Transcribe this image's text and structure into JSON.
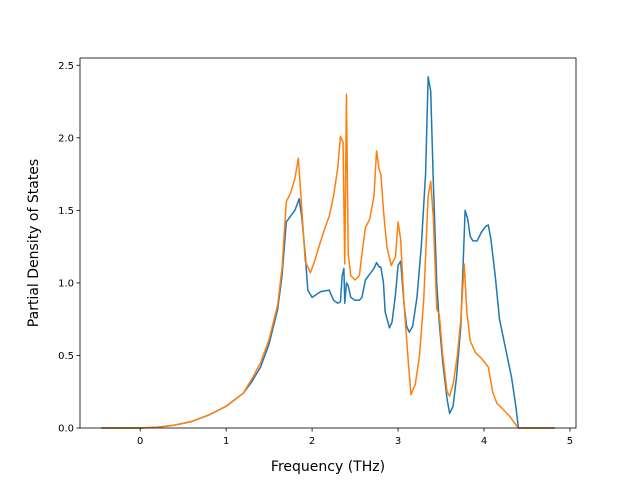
{
  "chart_data": {
    "type": "line",
    "xlabel": "Frequency (THz)",
    "ylabel": "Partial Density of States",
    "xlim": [
      -0.7,
      5.07
    ],
    "ylim": [
      0,
      2.55
    ],
    "xticks": [
      0,
      1,
      2,
      3,
      4,
      5
    ],
    "yticks": [
      0.0,
      0.5,
      1.0,
      1.5,
      2.0,
      2.5
    ],
    "xtick_labels": [
      "0",
      "1",
      "2",
      "3",
      "4",
      "5"
    ],
    "ytick_labels": [
      "0.0",
      "0.5",
      "1.0",
      "1.5",
      "2.0",
      "2.5"
    ],
    "grid": false,
    "series": [
      {
        "color": "#1f77b4",
        "points": [
          [
            -0.45,
            0.0
          ],
          [
            0.0,
            0.0
          ],
          [
            0.2,
            0.005
          ],
          [
            0.4,
            0.02
          ],
          [
            0.6,
            0.045
          ],
          [
            0.8,
            0.09
          ],
          [
            1.0,
            0.15
          ],
          [
            1.2,
            0.24
          ],
          [
            1.3,
            0.32
          ],
          [
            1.4,
            0.42
          ],
          [
            1.5,
            0.58
          ],
          [
            1.6,
            0.82
          ],
          [
            1.65,
            1.05
          ],
          [
            1.7,
            1.42
          ],
          [
            1.75,
            1.46
          ],
          [
            1.8,
            1.5
          ],
          [
            1.85,
            1.58
          ],
          [
            1.88,
            1.45
          ],
          [
            1.92,
            1.2
          ],
          [
            1.95,
            0.95
          ],
          [
            2.0,
            0.9
          ],
          [
            2.05,
            0.92
          ],
          [
            2.1,
            0.94
          ],
          [
            2.2,
            0.95
          ],
          [
            2.25,
            0.88
          ],
          [
            2.3,
            0.86
          ],
          [
            2.33,
            0.87
          ],
          [
            2.35,
            1.05
          ],
          [
            2.37,
            1.1
          ],
          [
            2.38,
            0.86
          ],
          [
            2.4,
            1.0
          ],
          [
            2.42,
            0.98
          ],
          [
            2.45,
            0.9
          ],
          [
            2.5,
            0.88
          ],
          [
            2.55,
            0.88
          ],
          [
            2.58,
            0.9
          ],
          [
            2.62,
            1.02
          ],
          [
            2.67,
            1.06
          ],
          [
            2.72,
            1.1
          ],
          [
            2.75,
            1.14
          ],
          [
            2.78,
            1.11
          ],
          [
            2.8,
            1.11
          ],
          [
            2.83,
            1.0
          ],
          [
            2.85,
            0.8
          ],
          [
            2.9,
            0.69
          ],
          [
            2.93,
            0.73
          ],
          [
            2.97,
            0.92
          ],
          [
            3.0,
            1.12
          ],
          [
            3.03,
            1.15
          ],
          [
            3.07,
            0.85
          ],
          [
            3.1,
            0.7
          ],
          [
            3.13,
            0.66
          ],
          [
            3.17,
            0.7
          ],
          [
            3.22,
            0.9
          ],
          [
            3.27,
            1.25
          ],
          [
            3.32,
            1.75
          ],
          [
            3.35,
            2.42
          ],
          [
            3.38,
            2.32
          ],
          [
            3.41,
            1.7
          ],
          [
            3.45,
            1.0
          ],
          [
            3.48,
            0.72
          ],
          [
            3.52,
            0.45
          ],
          [
            3.57,
            0.2
          ],
          [
            3.6,
            0.1
          ],
          [
            3.64,
            0.15
          ],
          [
            3.68,
            0.35
          ],
          [
            3.73,
            0.7
          ],
          [
            3.78,
            1.5
          ],
          [
            3.81,
            1.44
          ],
          [
            3.84,
            1.32
          ],
          [
            3.87,
            1.29
          ],
          [
            3.92,
            1.29
          ],
          [
            3.97,
            1.35
          ],
          [
            4.02,
            1.39
          ],
          [
            4.05,
            1.4
          ],
          [
            4.08,
            1.3
          ],
          [
            4.13,
            1.05
          ],
          [
            4.18,
            0.75
          ],
          [
            4.25,
            0.55
          ],
          [
            4.32,
            0.35
          ],
          [
            4.37,
            0.15
          ],
          [
            4.4,
            0.0
          ],
          [
            4.82,
            0.0
          ]
        ]
      },
      {
        "color": "#ff7f0e",
        "points": [
          [
            -0.45,
            0.0
          ],
          [
            0.0,
            0.0
          ],
          [
            0.2,
            0.005
          ],
          [
            0.4,
            0.02
          ],
          [
            0.6,
            0.045
          ],
          [
            0.8,
            0.09
          ],
          [
            1.0,
            0.15
          ],
          [
            1.2,
            0.24
          ],
          [
            1.3,
            0.34
          ],
          [
            1.4,
            0.45
          ],
          [
            1.5,
            0.61
          ],
          [
            1.6,
            0.85
          ],
          [
            1.65,
            1.1
          ],
          [
            1.7,
            1.56
          ],
          [
            1.75,
            1.62
          ],
          [
            1.8,
            1.72
          ],
          [
            1.84,
            1.86
          ],
          [
            1.87,
            1.6
          ],
          [
            1.92,
            1.15
          ],
          [
            1.98,
            1.07
          ],
          [
            2.03,
            1.15
          ],
          [
            2.08,
            1.25
          ],
          [
            2.15,
            1.38
          ],
          [
            2.2,
            1.46
          ],
          [
            2.25,
            1.6
          ],
          [
            2.3,
            1.8
          ],
          [
            2.33,
            2.01
          ],
          [
            2.36,
            1.97
          ],
          [
            2.38,
            1.13
          ],
          [
            2.4,
            2.3
          ],
          [
            2.42,
            1.2
          ],
          [
            2.45,
            1.05
          ],
          [
            2.5,
            1.02
          ],
          [
            2.55,
            1.05
          ],
          [
            2.58,
            1.2
          ],
          [
            2.62,
            1.38
          ],
          [
            2.67,
            1.44
          ],
          [
            2.72,
            1.6
          ],
          [
            2.75,
            1.91
          ],
          [
            2.78,
            1.78
          ],
          [
            2.8,
            1.75
          ],
          [
            2.83,
            1.5
          ],
          [
            2.87,
            1.25
          ],
          [
            2.92,
            1.12
          ],
          [
            2.97,
            1.18
          ],
          [
            3.0,
            1.42
          ],
          [
            3.03,
            1.3
          ],
          [
            3.07,
            0.85
          ],
          [
            3.12,
            0.45
          ],
          [
            3.15,
            0.23
          ],
          [
            3.2,
            0.3
          ],
          [
            3.25,
            0.5
          ],
          [
            3.3,
            0.9
          ],
          [
            3.35,
            1.6
          ],
          [
            3.38,
            1.7
          ],
          [
            3.41,
            1.45
          ],
          [
            3.45,
            0.82
          ],
          [
            3.48,
            0.78
          ],
          [
            3.52,
            0.5
          ],
          [
            3.57,
            0.25
          ],
          [
            3.6,
            0.22
          ],
          [
            3.64,
            0.3
          ],
          [
            3.69,
            0.5
          ],
          [
            3.73,
            0.75
          ],
          [
            3.77,
            1.13
          ],
          [
            3.8,
            0.8
          ],
          [
            3.84,
            0.6
          ],
          [
            3.9,
            0.52
          ],
          [
            3.97,
            0.48
          ],
          [
            4.05,
            0.42
          ],
          [
            4.1,
            0.25
          ],
          [
            4.15,
            0.17
          ],
          [
            4.22,
            0.13
          ],
          [
            4.3,
            0.08
          ],
          [
            4.36,
            0.03
          ],
          [
            4.4,
            0.0
          ],
          [
            4.82,
            0.0
          ]
        ]
      }
    ]
  }
}
